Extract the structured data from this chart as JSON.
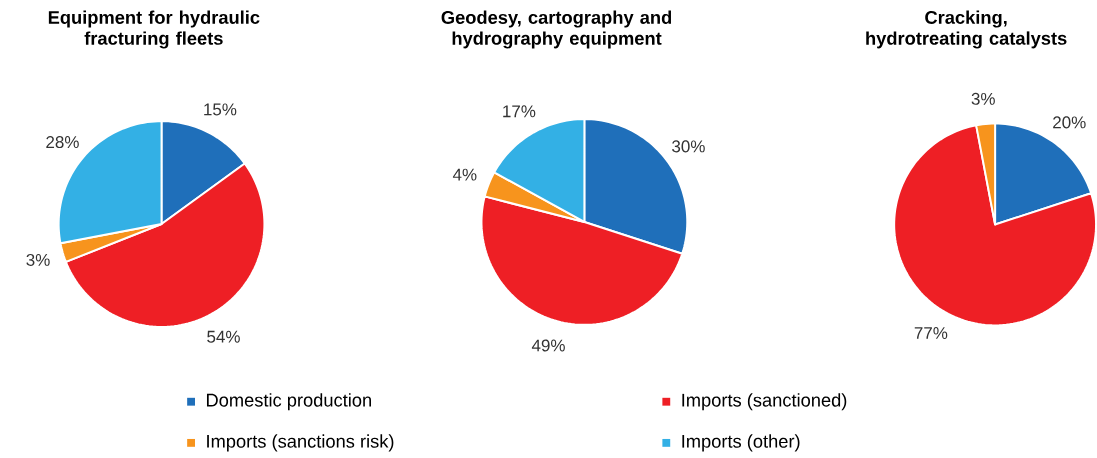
{
  "chart_data": {
    "type": "pie",
    "categories": [
      "Domestic production",
      "Imports (sanctioned)",
      "Imports (sanctions risk)",
      "Imports (other)"
    ],
    "colors": [
      "#1f6fba",
      "#ee1f25",
      "#f7941d",
      "#33b0e5"
    ],
    "legend": "bottom",
    "series": [
      {
        "name": "Equipment for hydraulic fracturing fleets",
        "values": [
          15,
          54,
          3,
          28
        ],
        "value_labels": [
          "15%",
          "54%",
          "3%",
          "28%"
        ]
      },
      {
        "name": "Geodesy, cartography and hydrography equipment",
        "values": [
          30,
          49,
          4,
          17
        ],
        "value_labels": [
          "30%",
          "49%",
          "4%",
          "17%"
        ]
      },
      {
        "name": "Cracking, hydrotreating catalysts",
        "values": [
          20,
          77,
          3,
          null
        ],
        "value_labels": [
          "20%",
          "77%",
          "3%",
          null
        ]
      }
    ]
  }
}
